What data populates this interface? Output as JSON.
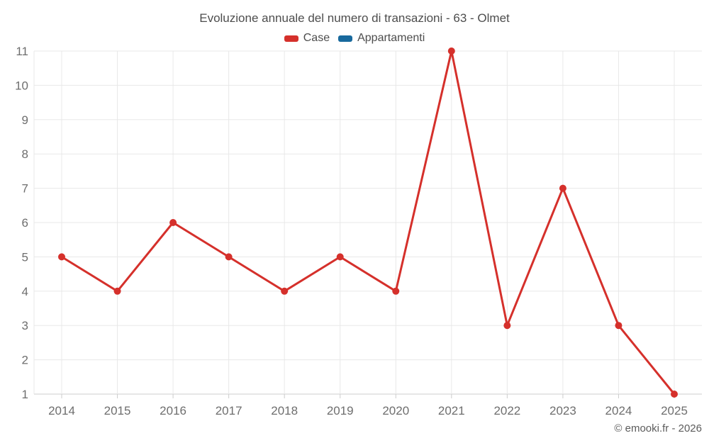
{
  "chart_data": {
    "type": "line",
    "title": "Evoluzione annuale del numero di transazioni - 63 - Olmet",
    "categories": [
      "2014",
      "2015",
      "2016",
      "2017",
      "2018",
      "2019",
      "2020",
      "2021",
      "2022",
      "2023",
      "2024",
      "2025"
    ],
    "series": [
      {
        "name": "Case",
        "color": "#d5302b",
        "values": [
          5,
          4,
          6,
          5,
          4,
          5,
          4,
          11,
          3,
          7,
          3,
          1
        ]
      },
      {
        "name": "Appartamenti",
        "color": "#18699d",
        "values": []
      }
    ],
    "xlabel": "",
    "ylabel": "",
    "ylim": [
      1,
      11
    ],
    "yticks": [
      1,
      2,
      3,
      4,
      5,
      6,
      7,
      8,
      9,
      10,
      11
    ],
    "grid": true,
    "legend_position": "top",
    "colors": {
      "grid_line": "#e8e8e8",
      "axis_line": "#cccccc",
      "tick_mark": "#cccccc",
      "axis_label_text": "#6e6e6e",
      "title_text": "#4d4d4d"
    }
  },
  "watermark": "© emooki.fr - 2026"
}
